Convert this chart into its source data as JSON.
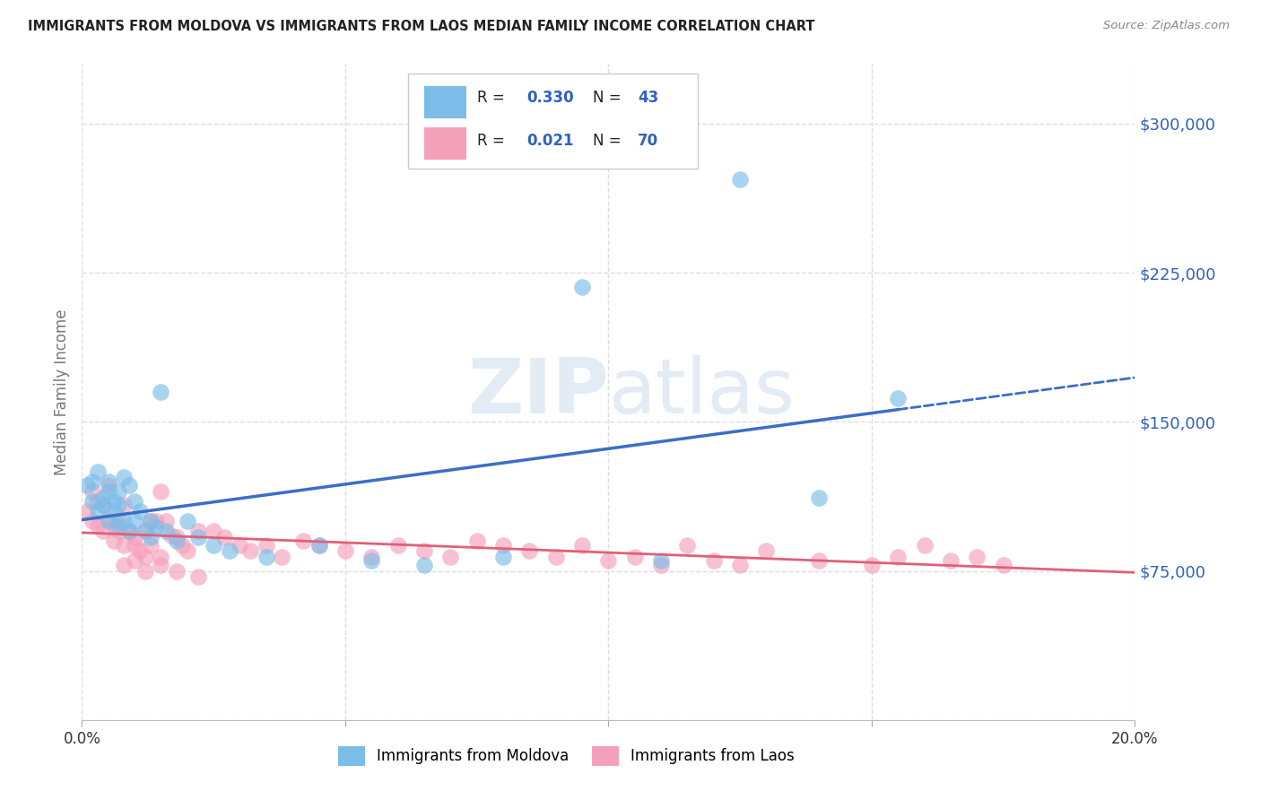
{
  "title": "IMMIGRANTS FROM MOLDOVA VS IMMIGRANTS FROM LAOS MEDIAN FAMILY INCOME CORRELATION CHART",
  "source": "Source: ZipAtlas.com",
  "ylabel": "Median Family Income",
  "x_min": 0.0,
  "x_max": 0.2,
  "y_min": 0,
  "y_max": 330000,
  "yticks": [
    0,
    75000,
    150000,
    225000,
    300000
  ],
  "xticks": [
    0.0,
    0.05,
    0.1,
    0.15,
    0.2
  ],
  "moldova_R": 0.33,
  "moldova_N": 43,
  "laos_R": 0.021,
  "laos_N": 70,
  "moldova_color": "#7BBDE8",
  "laos_color": "#F5A0BA",
  "moldova_line_color": "#3A6EC8",
  "laos_line_color": "#E0607A",
  "background_color": "#FFFFFF",
  "grid_color": "#DDDDE8",
  "watermark": "ZIPatlas",
  "moldova_x": [
    0.001,
    0.002,
    0.002,
    0.003,
    0.003,
    0.004,
    0.004,
    0.005,
    0.005,
    0.005,
    0.006,
    0.006,
    0.007,
    0.007,
    0.007,
    0.008,
    0.008,
    0.009,
    0.009,
    0.01,
    0.01,
    0.011,
    0.012,
    0.013,
    0.013,
    0.014,
    0.015,
    0.016,
    0.018,
    0.02,
    0.022,
    0.025,
    0.028,
    0.035,
    0.045,
    0.055,
    0.065,
    0.08,
    0.095,
    0.11,
    0.125,
    0.14,
    0.155
  ],
  "moldova_y": [
    118000,
    120000,
    110000,
    125000,
    105000,
    112000,
    108000,
    120000,
    115000,
    100000,
    110000,
    105000,
    115000,
    108000,
    98000,
    122000,
    100000,
    118000,
    95000,
    110000,
    100000,
    105000,
    95000,
    100000,
    92000,
    97000,
    165000,
    95000,
    90000,
    100000,
    92000,
    88000,
    85000,
    82000,
    88000,
    80000,
    78000,
    82000,
    218000,
    80000,
    272000,
    112000,
    162000
  ],
  "laos_x": [
    0.001,
    0.002,
    0.002,
    0.003,
    0.003,
    0.004,
    0.004,
    0.005,
    0.005,
    0.006,
    0.006,
    0.007,
    0.007,
    0.008,
    0.008,
    0.009,
    0.01,
    0.01,
    0.011,
    0.012,
    0.012,
    0.013,
    0.013,
    0.014,
    0.015,
    0.015,
    0.016,
    0.017,
    0.018,
    0.019,
    0.02,
    0.022,
    0.025,
    0.027,
    0.03,
    0.032,
    0.035,
    0.038,
    0.042,
    0.045,
    0.05,
    0.055,
    0.06,
    0.065,
    0.07,
    0.075,
    0.08,
    0.085,
    0.09,
    0.095,
    0.1,
    0.105,
    0.11,
    0.115,
    0.12,
    0.125,
    0.13,
    0.14,
    0.15,
    0.155,
    0.16,
    0.165,
    0.17,
    0.175,
    0.008,
    0.01,
    0.012,
    0.015,
    0.018,
    0.022
  ],
  "laos_y": [
    105000,
    115000,
    100000,
    110000,
    98000,
    108000,
    95000,
    118000,
    102000,
    98000,
    90000,
    100000,
    95000,
    108000,
    88000,
    95000,
    92000,
    88000,
    85000,
    95000,
    82000,
    100000,
    88000,
    100000,
    115000,
    82000,
    100000,
    93000,
    92000,
    88000,
    85000,
    95000,
    95000,
    92000,
    88000,
    85000,
    88000,
    82000,
    90000,
    88000,
    85000,
    82000,
    88000,
    85000,
    82000,
    90000,
    88000,
    85000,
    82000,
    88000,
    80000,
    82000,
    78000,
    88000,
    80000,
    78000,
    85000,
    80000,
    78000,
    82000,
    88000,
    80000,
    82000,
    78000,
    78000,
    80000,
    75000,
    78000,
    75000,
    72000
  ]
}
